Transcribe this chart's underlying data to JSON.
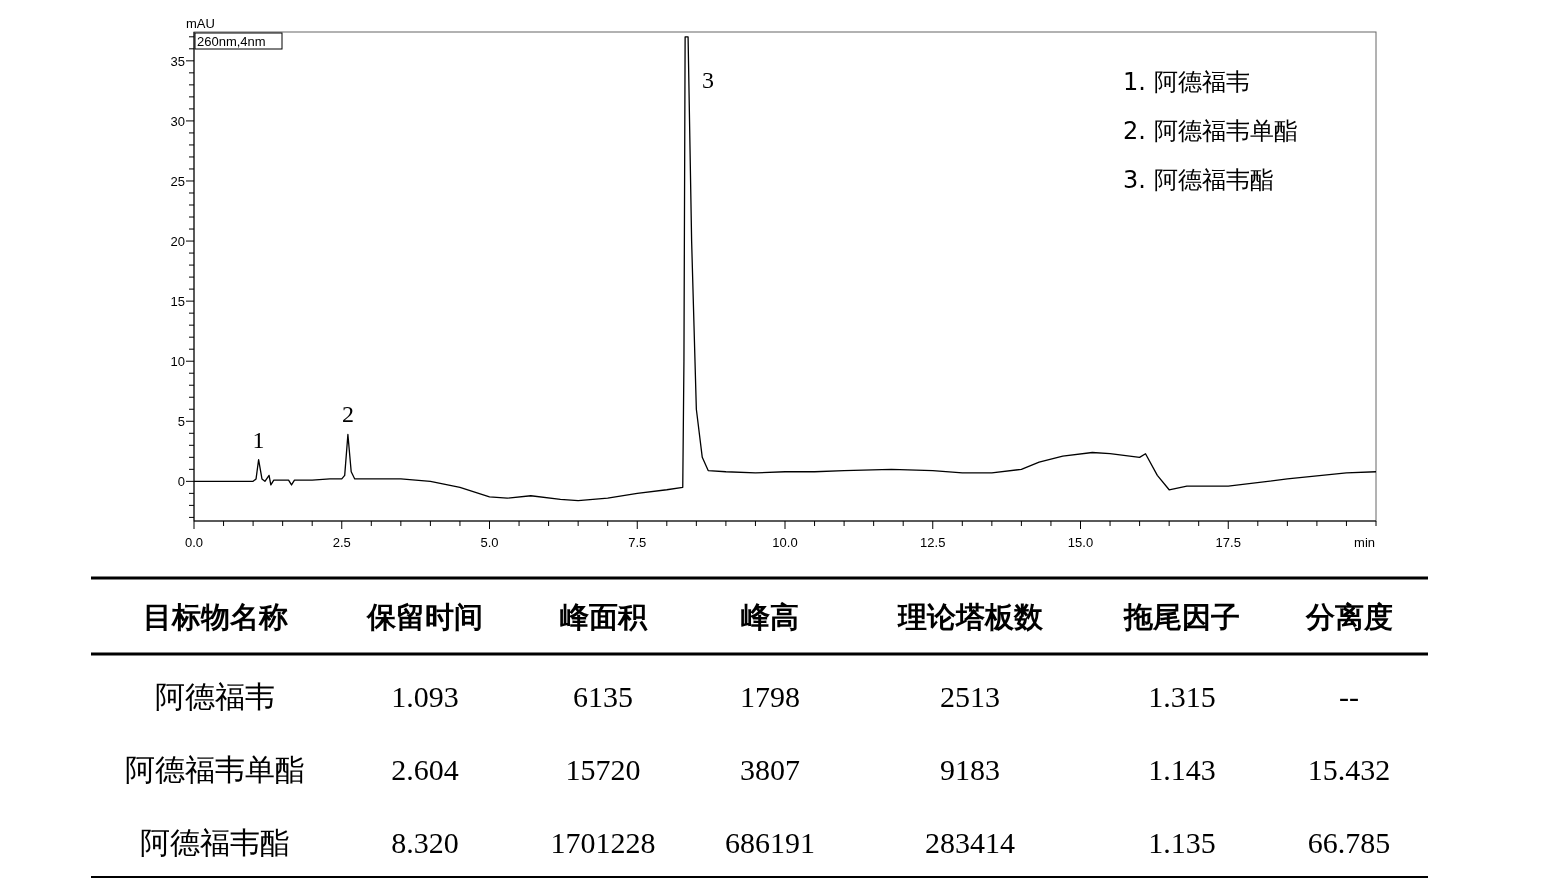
{
  "chart_data": [
    {
      "type": "line",
      "xlabel": "min",
      "ylabel": "mAU",
      "color": "#000000",
      "xlim": [
        0,
        20
      ],
      "ylim": [
        -3.3,
        37.4
      ],
      "xticks": [
        {
          "value": 0,
          "label": "0.0"
        },
        {
          "value": 0.5,
          "label": null
        },
        {
          "value": 1,
          "label": null
        },
        {
          "value": 1.5,
          "label": null
        },
        {
          "value": 2,
          "label": null
        },
        {
          "value": 2.5,
          "label": "2.5"
        },
        {
          "value": 3,
          "label": null
        },
        {
          "value": 3.5,
          "label": null
        },
        {
          "value": 4,
          "label": null
        },
        {
          "value": 4.5,
          "label": null
        },
        {
          "value": 5,
          "label": "5.0"
        },
        {
          "value": 5.5,
          "label": null
        },
        {
          "value": 6,
          "label": null
        },
        {
          "value": 6.5,
          "label": null
        },
        {
          "value": 7,
          "label": null
        },
        {
          "value": 7.5,
          "label": "7.5"
        },
        {
          "value": 8,
          "label": null
        },
        {
          "value": 8.5,
          "label": null
        },
        {
          "value": 9,
          "label": null
        },
        {
          "value": 9.5,
          "label": null
        },
        {
          "value": 10,
          "label": "10.0"
        },
        {
          "value": 10.5,
          "label": null
        },
        {
          "value": 11,
          "label": null
        },
        {
          "value": 11.5,
          "label": null
        },
        {
          "value": 12,
          "label": null
        },
        {
          "value": 12.5,
          "label": "12.5"
        },
        {
          "value": 13,
          "label": null
        },
        {
          "value": 13.5,
          "label": null
        },
        {
          "value": 14,
          "label": null
        },
        {
          "value": 14.5,
          "label": null
        },
        {
          "value": 15,
          "label": "15.0"
        },
        {
          "value": 15.5,
          "label": null
        },
        {
          "value": 16,
          "label": null
        },
        {
          "value": 16.5,
          "label": null
        },
        {
          "value": 17,
          "label": null
        },
        {
          "value": 17.5,
          "label": "17.5"
        },
        {
          "value": 18,
          "label": null
        },
        {
          "value": 18.5,
          "label": null
        },
        {
          "value": 19,
          "label": null
        },
        {
          "value": 19.5,
          "label": null
        },
        {
          "value": 20,
          "label": null
        }
      ],
      "yticks": [
        {
          "value": -3,
          "label": null
        },
        {
          "value": -2,
          "label": null
        },
        {
          "value": -1,
          "label": null
        },
        0,
        {
          "value": 1,
          "label": null
        },
        {
          "value": 2,
          "label": null
        },
        {
          "value": 3,
          "label": null
        },
        {
          "value": 4,
          "label": null
        },
        5,
        {
          "value": 6,
          "label": null
        },
        {
          "value": 7,
          "label": null
        },
        {
          "value": 8,
          "label": null
        },
        {
          "value": 9,
          "label": null
        },
        10,
        {
          "value": 11,
          "label": null
        },
        {
          "value": 12,
          "label": null
        },
        {
          "value": 13,
          "label": null
        },
        {
          "value": 14,
          "label": null
        },
        15,
        {
          "value": 16,
          "label": null
        },
        {
          "value": 17,
          "label": null
        },
        {
          "value": 18,
          "label": null
        },
        {
          "value": 19,
          "label": null
        },
        20,
        {
          "value": 21,
          "label": null
        },
        {
          "value": 22,
          "label": null
        },
        {
          "value": 23,
          "label": null
        },
        {
          "value": 24,
          "label": null
        },
        25,
        {
          "value": 26,
          "label": null
        },
        {
          "value": 27,
          "label": null
        },
        {
          "value": 28,
          "label": null
        },
        {
          "value": 29,
          "label": null
        },
        30,
        {
          "value": 31,
          "label": null
        },
        {
          "value": 32,
          "label": null
        },
        {
          "value": 33,
          "label": null
        },
        {
          "value": 34,
          "label": null
        },
        35,
        {
          "value": 36,
          "label": null
        },
        {
          "value": 37,
          "label": null
        }
      ],
      "x": [
        0,
        1.0,
        1.05,
        1.093,
        1.15,
        1.2,
        1.27,
        1.3,
        1.35,
        1.6,
        1.65,
        1.7,
        2.0,
        2.3,
        2.5,
        2.55,
        2.604,
        2.66,
        2.72,
        3.0,
        3.5,
        4.0,
        4.5,
        5.0,
        5.3,
        5.7,
        6.2,
        6.5,
        7.0,
        7.5,
        8.0,
        8.27,
        8.29,
        8.31,
        8.36,
        8.42,
        8.5,
        8.6,
        8.7,
        9.0,
        9.5,
        10.0,
        10.5,
        11.0,
        11.8,
        12.5,
        13.0,
        13.5,
        14.0,
        14.3,
        14.7,
        15.2,
        15.5,
        16.0,
        16.1,
        16.3,
        16.5,
        16.8,
        17.5,
        18.5,
        19.5,
        20
      ],
      "values": [
        0,
        0,
        0.2,
        1.8,
        0.2,
        0,
        0.5,
        -0.3,
        0.1,
        0.1,
        -0.3,
        0.1,
        0.1,
        0.2,
        0.2,
        0.5,
        3.9,
        0.8,
        0.2,
        0.2,
        0.2,
        0,
        -0.5,
        -1.3,
        -1.4,
        -1.2,
        -1.5,
        -1.6,
        -1.4,
        -1,
        -0.7,
        -0.5,
        10,
        37,
        37,
        20,
        6,
        2,
        0.9,
        0.8,
        0.7,
        0.8,
        0.8,
        0.9,
        1,
        0.9,
        0.7,
        0.7,
        1,
        1.6,
        2.1,
        2.4,
        2.3,
        2,
        2.3,
        0.5,
        -0.7,
        -0.4,
        -0.4,
        0.2,
        0.7,
        0.8
      ],
      "annotations": [
        "260nm,4nm",
        {
          "text": "1",
          "x": 1.093,
          "y": 1.8
        },
        {
          "text": "2",
          "x": 2.604,
          "y": 3.9
        },
        {
          "text": "3",
          "x": 8.36,
          "y": 37
        },
        "1.  阿德福韦",
        "2.  阿德福韦单酯",
        "3.  阿德福韦酯"
      ]
    },
    {
      "type": "other",
      "categories": [
        "目标物名称",
        "保留时间",
        "峰面积",
        "峰高",
        "理论塔板数",
        "拖尾因子",
        "分离度"
      ],
      "annotations": [
        "阿德福韦",
        "1.093",
        "6135",
        "1798",
        "2513",
        "1.315",
        "--",
        "阿德福韦单酯",
        "2.604",
        "15720",
        "3807",
        "9183",
        "1.143",
        "15.432",
        "阿德福韦酯",
        "8.320",
        "1701228",
        "686191",
        "283414",
        "1.135",
        "66.785"
      ]
    }
  ]
}
